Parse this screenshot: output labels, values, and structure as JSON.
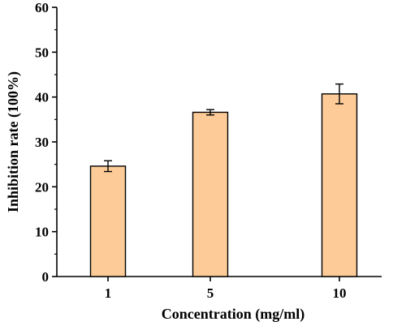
{
  "chart_data": {
    "type": "bar",
    "title": "",
    "xlabel": "Concentration (mg/ml)",
    "ylabel": "Inhibition rate (100%)",
    "categories": [
      "1",
      "5",
      "10"
    ],
    "values": [
      24.6,
      36.6,
      40.7
    ],
    "errors": [
      1.2,
      0.6,
      2.2
    ],
    "ylim": [
      0,
      60
    ],
    "yticks": [
      "0",
      "10",
      "20",
      "30",
      "40",
      "50",
      "60"
    ],
    "grid": false,
    "legend": "none",
    "colors": {
      "bar_fill": "#FDCB98",
      "bar_stroke": "#000000",
      "axis": "#000000"
    }
  }
}
